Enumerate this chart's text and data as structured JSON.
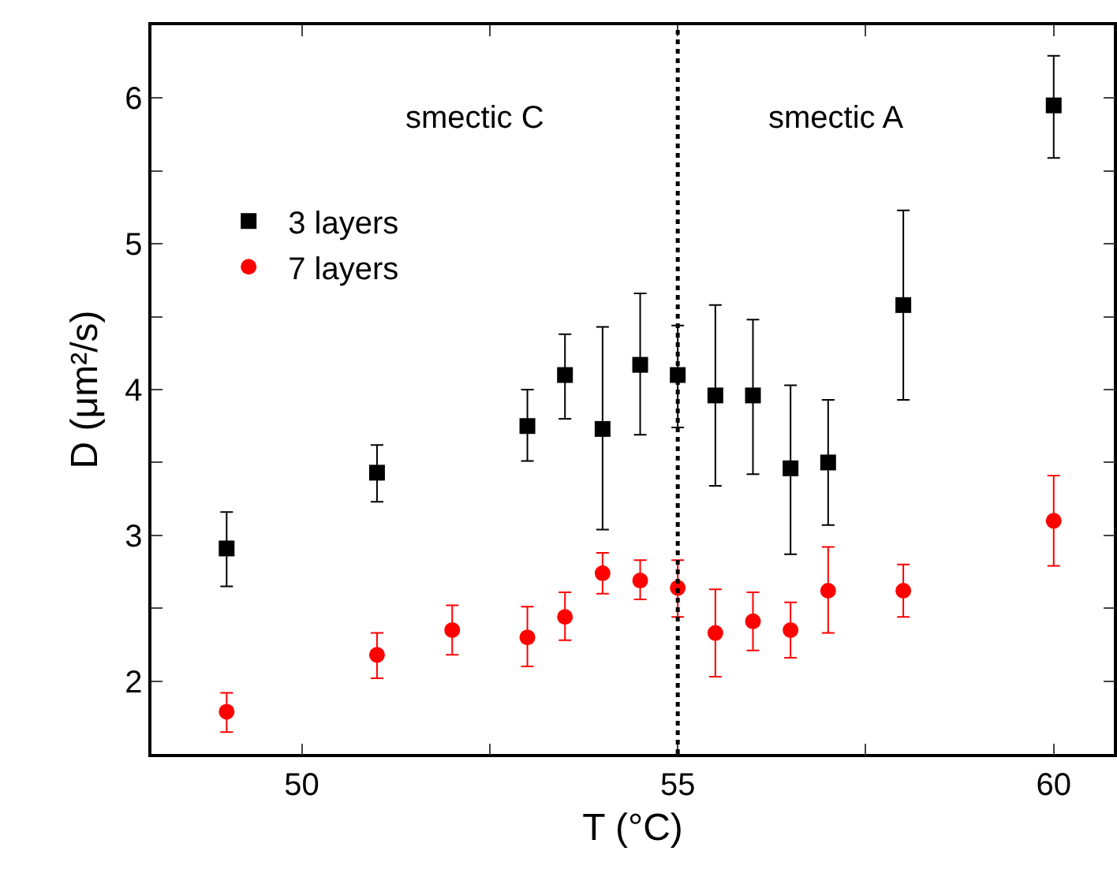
{
  "chart_data": {
    "type": "scatter",
    "xlabel": "T (°C)",
    "ylabel": "D (μm²/s)",
    "xlim": [
      48,
      60.8
    ],
    "xticks": [
      50,
      {
        "value": 52.5,
        "label": null
      },
      55,
      {
        "value": 57.5,
        "label": null
      },
      60
    ],
    "ylim": [
      1.5,
      6.5
    ],
    "yticks": [
      2,
      {
        "value": 2.5,
        "label": null
      },
      3,
      {
        "value": 3.5,
        "label": null
      },
      4,
      {
        "value": 4.5,
        "label": null
      },
      5,
      {
        "value": 5.5,
        "label": null
      },
      6
    ],
    "grid": false,
    "legend": "left",
    "series": [
      {
        "name": "3 layers",
        "color": "#000000",
        "marker": "square",
        "x": [
          49,
          51,
          53,
          53.5,
          54,
          54.5,
          55,
          55.5,
          56,
          56.5,
          57,
          58,
          60
        ],
        "values": [
          2.91,
          3.43,
          3.75,
          4.1,
          3.73,
          4.17,
          4.1,
          3.96,
          3.96,
          3.46,
          3.5,
          4.58,
          5.95
        ],
        "errors": [
          [
            2.65,
            3.16
          ],
          [
            3.23,
            3.62
          ],
          [
            3.51,
            4.0
          ],
          [
            3.8,
            4.38
          ],
          [
            3.04,
            4.43
          ],
          [
            3.69,
            4.66
          ],
          [
            3.74,
            4.44
          ],
          [
            3.34,
            4.58
          ],
          [
            3.42,
            4.48
          ],
          [
            2.87,
            4.03
          ],
          [
            3.07,
            3.93
          ],
          [
            3.93,
            5.23
          ],
          [
            5.59,
            6.29
          ]
        ]
      },
      {
        "name": "7 layers",
        "color": "#ff0000",
        "marker": "circle",
        "x": [
          49,
          51,
          52,
          53,
          53.5,
          54,
          54.5,
          55,
          55.5,
          56,
          56.5,
          57,
          58,
          60
        ],
        "values": [
          1.79,
          2.18,
          2.35,
          2.3,
          2.44,
          2.74,
          2.69,
          2.64,
          2.33,
          2.41,
          2.35,
          2.62,
          2.62,
          3.1
        ],
        "errors": [
          [
            1.65,
            1.92
          ],
          [
            2.02,
            2.33
          ],
          [
            2.18,
            2.52
          ],
          [
            2.1,
            2.51
          ],
          [
            2.28,
            2.61
          ],
          [
            2.6,
            2.88
          ],
          [
            2.56,
            2.83
          ],
          [
            2.44,
            2.83
          ],
          [
            2.03,
            2.63
          ],
          [
            2.21,
            2.61
          ],
          [
            2.16,
            2.54
          ],
          [
            2.33,
            2.92
          ],
          [
            2.44,
            2.8
          ],
          [
            2.79,
            3.41
          ]
        ]
      }
    ],
    "ref_lines": [
      {
        "axis": "x",
        "value": 55,
        "color": "#000000",
        "line_style": "dotted"
      }
    ],
    "annotations": [
      "smectic C",
      "smectic A"
    ]
  }
}
